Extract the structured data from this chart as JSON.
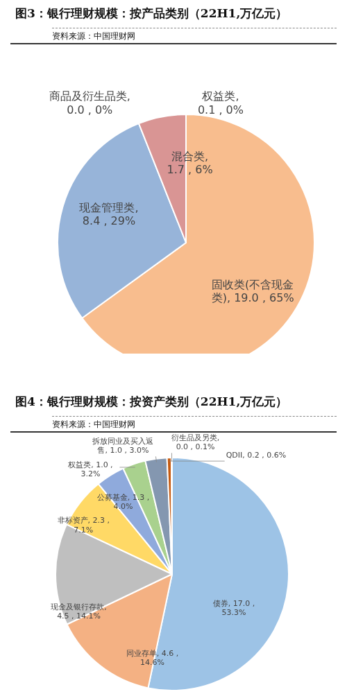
{
  "chart_data": [
    {
      "type": "pie",
      "title": "图3：银行理财规模：按产品类别（22H1,万亿元）",
      "annotations": [
        "资料来源：中国理财网"
      ],
      "categories": [
        "固收类(不含现金类)",
        "现金管理类",
        "混合类",
        "商品及衍生品类",
        "权益类"
      ],
      "values": [
        65,
        29,
        6,
        0,
        0
      ],
      "value_labels": [
        ", 19.0 , 65%",
        ", 8.4 , 29%",
        ", 1.7 , 6%",
        ", 0.0 , 0%",
        ", 0.1 , 0%"
      ],
      "colors": [
        "#f8bd8e",
        "#97b4d9",
        "#d99594",
        "#b3a2c7",
        "#93cddd"
      ]
    },
    {
      "type": "pie",
      "title": "图4：银行理财规模：按资产类别（22H1,万亿元）",
      "annotations": [
        "资料来源：中国理财网"
      ],
      "categories": [
        "债券",
        "同业存单",
        "现金及银行存款",
        "非标资产",
        "公募基金",
        "权益类",
        "拆放同业及买入返售",
        "QDII",
        "衍生品及另类"
      ],
      "values": [
        53.3,
        14.6,
        14.1,
        7.1,
        4.0,
        3.2,
        3.0,
        0.6,
        0.1
      ],
      "value_labels": [
        ", 17.0 , 53.3%",
        ", 4.6 , 14.6%",
        ", 4.5 , 14.1%",
        ", 2.3 , 7.1%",
        ", 1.3 , 4.0%",
        ", 1.0 , 3.2%",
        ", 1.0 , 3.0%",
        ", 0.2 , 0.6%",
        ", 0.0 , 0.1%"
      ],
      "colors": [
        "#9dc3e6",
        "#f4b183",
        "#bfbfbf",
        "#ffd966",
        "#8faadc",
        "#a9d18e",
        "#8497b0",
        "#c55a11",
        "#7f6000"
      ]
    }
  ]
}
